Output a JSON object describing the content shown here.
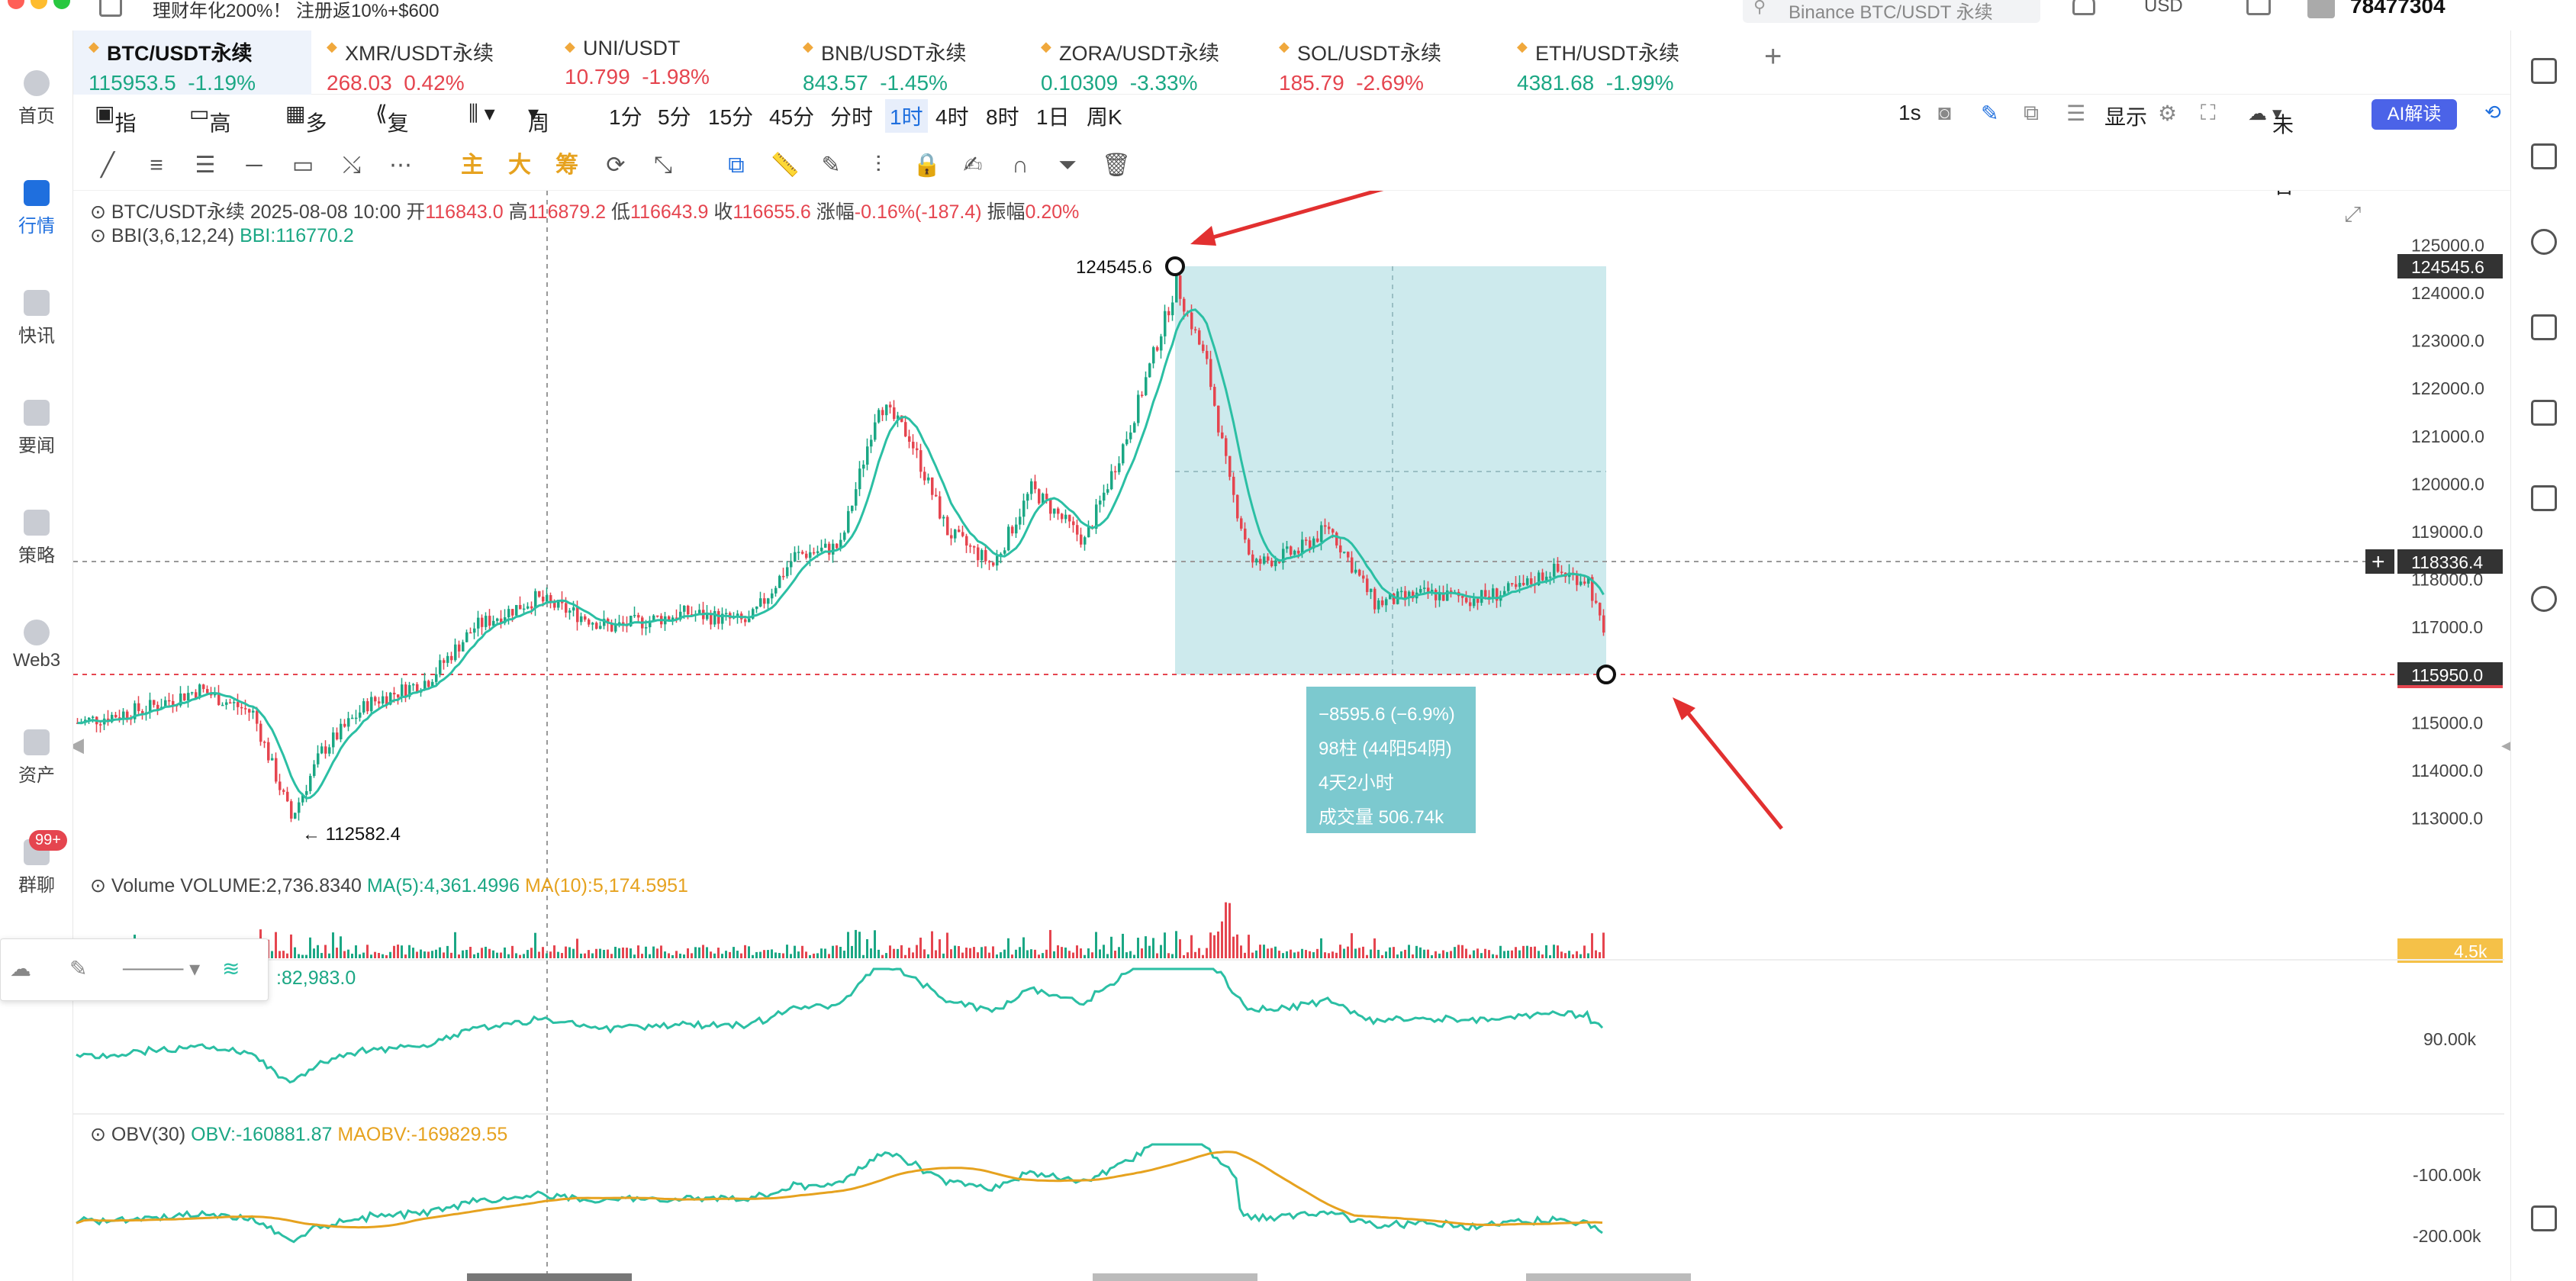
{
  "topbar": {
    "promo": "理财年化200%！ 注册返10%+$600",
    "search_placeholder": "Binance BTC/USDT 永续",
    "currency": "USD",
    "user_id": "78477304"
  },
  "leftnav": [
    {
      "label": "首页",
      "icon": "home-icon"
    },
    {
      "label": "行情",
      "icon": "chart-icon",
      "active": true
    },
    {
      "label": "快讯",
      "icon": "flash-news-icon"
    },
    {
      "label": "要闻",
      "icon": "news-icon"
    },
    {
      "label": "策略",
      "icon": "robot-icon"
    },
    {
      "label": "Web3",
      "icon": "web3-icon"
    },
    {
      "label": "资产",
      "icon": "wallet-icon"
    },
    {
      "label": "群聊",
      "icon": "chat-icon",
      "badge": "99+"
    }
  ],
  "tabs": [
    {
      "name": "BTC/USDT永续",
      "price": "115953.5",
      "change": "-1.19%",
      "dir": "up",
      "active": true
    },
    {
      "name": "XMR/USDT永续",
      "price": "268.03",
      "change": "0.42%",
      "dir": "down"
    },
    {
      "name": "UNI/USDT",
      "price": "10.799",
      "change": "-1.98%",
      "dir": "down"
    },
    {
      "name": "BNB/USDT永续",
      "price": "843.57",
      "change": "-1.45%",
      "dir": "up"
    },
    {
      "name": "ZORA/USDT永续",
      "price": "0.10309",
      "change": "-3.33%",
      "dir": "up"
    },
    {
      "name": "SOL/USDT永续",
      "price": "185.79",
      "change": "-2.69%",
      "dir": "down"
    },
    {
      "name": "ETH/USDT永续",
      "price": "4381.68",
      "change": "-1.99%",
      "dir": "up"
    }
  ],
  "toolbar": {
    "indicator": "指标",
    "advanced": "高级",
    "multi_window": "多窗",
    "replay": "复盘",
    "period": "周期",
    "intervals": [
      "1分",
      "5分",
      "15分",
      "45分",
      "分时",
      "1时",
      "4时",
      "8时",
      "1日",
      "周K"
    ],
    "selected_interval": "1时",
    "refresh": "1s",
    "display": "显示",
    "unnamed": "未命名",
    "ai": "AI解读"
  },
  "draw_tools": {
    "main": "主",
    "big": "大",
    "chip": "筹"
  },
  "ohlc": {
    "symbol": "BTC/USDT永续",
    "datetime": "2025-08-08 10:00",
    "open_label": "开",
    "open": "116843.0",
    "high_label": "高",
    "high": "116879.2",
    "low_label": "低",
    "low": "116643.9",
    "close_label": "收",
    "close": "116655.6",
    "change_label": "涨幅",
    "change": "-0.16%(-187.4)",
    "amp_label": "振幅",
    "amp": "0.20%"
  },
  "bbi": {
    "label": "BBI(3,6,12,24)",
    "value": "BBI:116770.2"
  },
  "volume": {
    "label": "Volume",
    "value": "VOLUME:2,736.8340",
    "ma5": "MA(5):4,361.4996",
    "ma10": "MA(10):5,174.5951",
    "axis_tag": "4.5k"
  },
  "sub2": {
    "value": "82,983.0",
    "axis_label": "90.00k"
  },
  "obv": {
    "label": "OBV(30)",
    "obv": "OBV:-160881.87",
    "maobv": "MAOBV:-169829.55",
    "axis_labels": [
      "-100.00k",
      "-200.00k"
    ]
  },
  "price_axis": {
    "ticks": [
      "125000.0",
      "124000.0",
      "123000.0",
      "122000.0",
      "121000.0",
      "120000.0",
      "119000.0",
      "118000.0",
      "117000.0",
      "116000.0",
      "115000.0",
      "114000.0",
      "113000.0"
    ],
    "high_tag": "124545.6",
    "cross_tag": "118336.4",
    "current_tag": "115950.0"
  },
  "annotations": {
    "high_label": "124545.6",
    "low_label": "112582.4"
  },
  "measure": {
    "line1": "−8595.6 (−6.9%)",
    "line2": "98柱 (44阳54阴)",
    "line3": "4天2小时",
    "line4": "成交量 506.74k"
  },
  "colors": {
    "up": "#1ba784",
    "down": "#e5454f",
    "accent": "#1f6fde",
    "measure_box": "#cdeaed",
    "ma_line": "#2bbfa4",
    "orange": "#f0a83c"
  },
  "chart_data": {
    "type": "candlestick",
    "interval": "1时",
    "price_ylim": [
      112500,
      125000
    ],
    "series": [
      {
        "name": "BBI"
      },
      {
        "name": "VOLUME"
      },
      {
        "name": "OBV"
      },
      {
        "name": "MAOBV"
      }
    ],
    "notable_points": {
      "high": 124545.6,
      "low": 112582.4,
      "current": 115950.0,
      "crosshair": 118336.4
    }
  }
}
